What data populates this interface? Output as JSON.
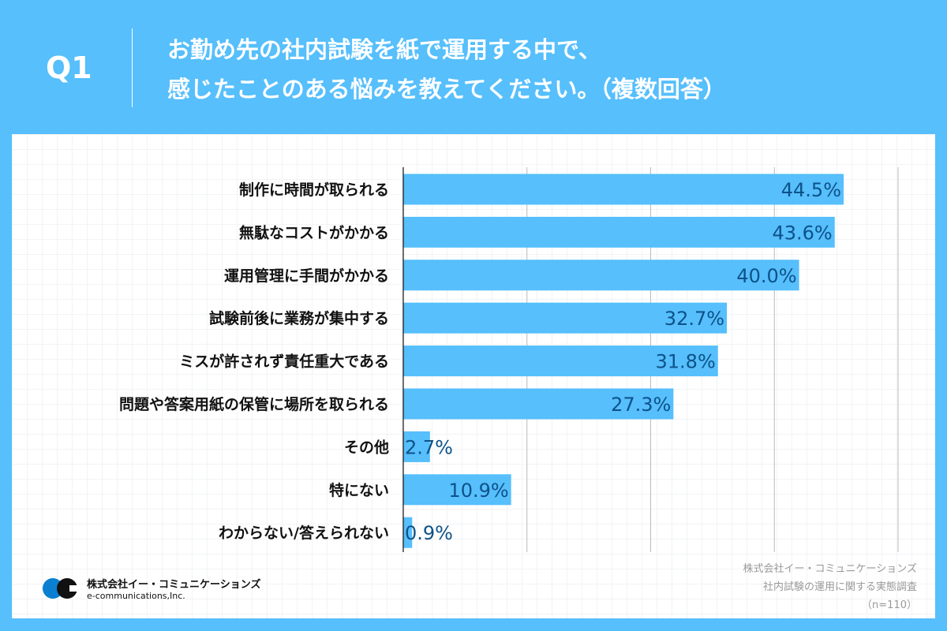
{
  "header": {
    "q": "Q1",
    "title_line1": "お勤め先の社内試験を紙で運用する中で、",
    "title_line2": "感じたことのある悩みを教えてください。（複数回答）"
  },
  "colors": {
    "background": "#56bffc",
    "bar": "#56bffc",
    "value_text": "#0d5289"
  },
  "chart_data": {
    "type": "bar",
    "orientation": "horizontal",
    "xlim": [
      0,
      50
    ],
    "grid": true,
    "unit": "%",
    "categories": [
      "制作に時間が取られる",
      "無駄なコストがかかる",
      "運用管理に手間がかかる",
      "試験前後に業務が集中する",
      "ミスが許されず責任重大である",
      "問題や答案用紙の保管に場所を取られる",
      "その他",
      "特にない",
      "わからない/答えられない"
    ],
    "values": [
      44.5,
      43.6,
      40.0,
      32.7,
      31.8,
      27.3,
      2.7,
      10.9,
      0.9
    ],
    "labels": [
      "44.5%",
      "43.6%",
      "40.0%",
      "32.7%",
      "31.8%",
      "27.3%",
      "2.7%",
      "10.9%",
      "0.9%"
    ]
  },
  "footer": {
    "line1": "株式会社イー・コミュニケーションズ",
    "line2": "社内試験の運用に関する実態調査",
    "line3": "（n=110）"
  },
  "logo": {
    "name_jp": "株式会社イー・コミュニケーションズ",
    "name_en": "e-communications,Inc."
  }
}
